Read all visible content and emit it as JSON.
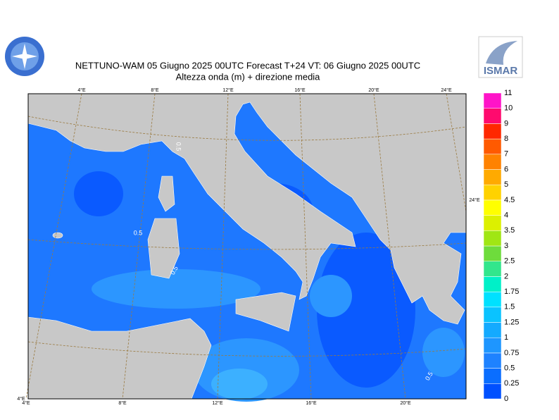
{
  "header": {
    "title_line1": "NETTUNO-WAM  05   Giugno  2025 00UTC Forecast T+24 VT: 06   Giugno  2025 00UTC",
    "title_line2": "Altezza onda (m) + direzione media",
    "logo_text": "ISMAR"
  },
  "map": {
    "top_labels": [
      "4°E",
      "8°E",
      "12°E",
      "16°E",
      "20°E",
      "24°E"
    ],
    "bottom_labels": [
      "4°E",
      "8°E",
      "12°E",
      "16°E",
      "20°E"
    ],
    "corner_label": "4°E",
    "side_label": "24°E",
    "contour_labels": [
      "0.5",
      "0.5",
      "0.5",
      "0.5"
    ]
  },
  "legend": {
    "labels": [
      "0",
      "0.25",
      "0.5",
      "0.75",
      "1",
      "1.25",
      "1.5",
      "1.75",
      "2",
      "2.5",
      "3",
      "3.5",
      "4",
      "4.5",
      "5",
      "6",
      "7",
      "8",
      "9",
      "10",
      "11"
    ],
    "colors": [
      "#0050ff",
      "#0a6eff",
      "#1e82ff",
      "#1e96ff",
      "#14aaff",
      "#0ac3ff",
      "#00e1ff",
      "#00f0c8",
      "#32e68c",
      "#6edc3c",
      "#a0e614",
      "#dcf000",
      "#ffff00",
      "#ffd200",
      "#ffaa00",
      "#ff8200",
      "#ff5a00",
      "#ff2800",
      "#ff0a6e",
      "#ff14c8"
    ]
  }
}
